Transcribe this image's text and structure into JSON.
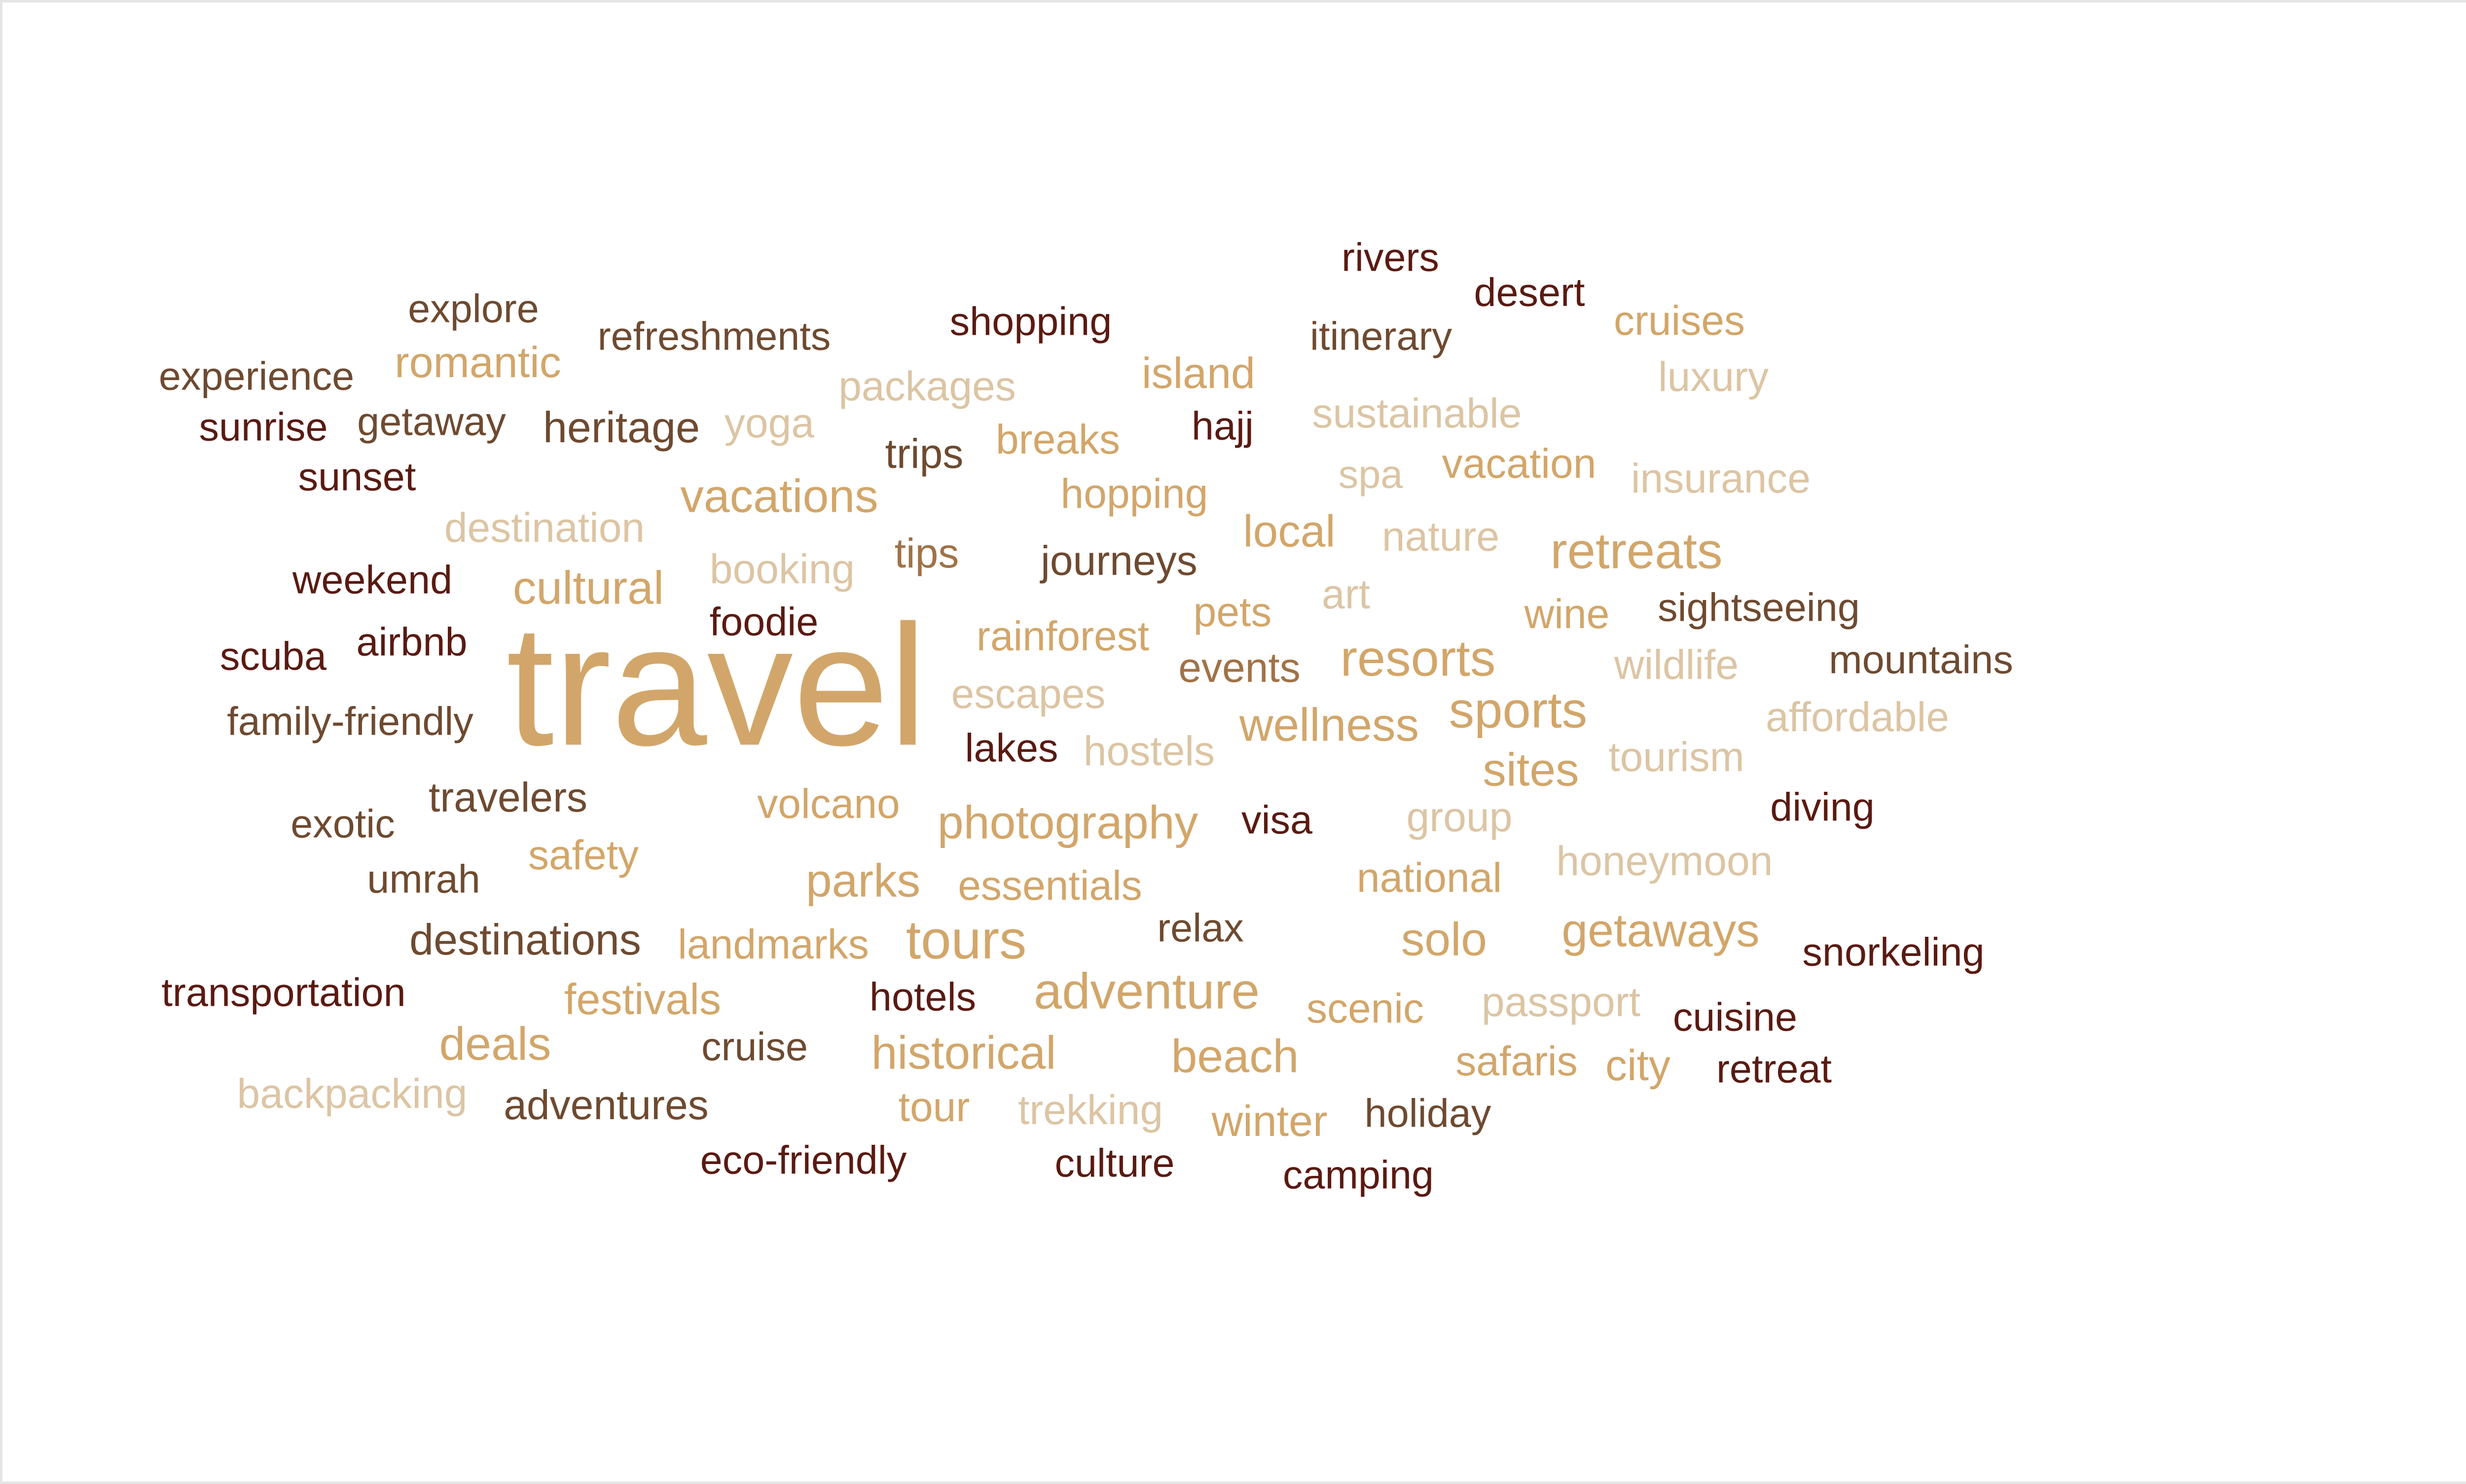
{
  "wordcloud": {
    "colors": {
      "deep_maroon": "#5a1a12",
      "dark_brown": "#6e4a30",
      "mid_brown": "#a17247",
      "gold": "#d2a66a",
      "tan": "#d8b88e",
      "light_tan": "#dcc5a4"
    },
    "words": [
      {
        "text": "travel",
        "color": "#d2a66a"
      },
      {
        "text": "rivers",
        "color": "#5a1a12"
      },
      {
        "text": "desert",
        "color": "#5a1a12"
      },
      {
        "text": "explore",
        "color": "#6e4a30"
      },
      {
        "text": "shopping",
        "color": "#5a1a12"
      },
      {
        "text": "cruises",
        "color": "#d2a66a"
      },
      {
        "text": "refreshments",
        "color": "#6e4a30"
      },
      {
        "text": "itinerary",
        "color": "#6e4a30"
      },
      {
        "text": "romantic",
        "color": "#d2a66a"
      },
      {
        "text": "experience",
        "color": "#6e4a30"
      },
      {
        "text": "packages",
        "color": "#dcc5a4"
      },
      {
        "text": "island",
        "color": "#d2a66a"
      },
      {
        "text": "luxury",
        "color": "#dcc5a4"
      },
      {
        "text": "sunrise",
        "color": "#5a1a12"
      },
      {
        "text": "getaway",
        "color": "#6e4a30"
      },
      {
        "text": "heritage",
        "color": "#6e4a30"
      },
      {
        "text": "yoga",
        "color": "#dcc5a4"
      },
      {
        "text": "hajj",
        "color": "#5a1a12"
      },
      {
        "text": "sustainable",
        "color": "#dcc5a4"
      },
      {
        "text": "trips",
        "color": "#6e4a30"
      },
      {
        "text": "breaks",
        "color": "#d2a66a"
      },
      {
        "text": "vacation",
        "color": "#d2a66a"
      },
      {
        "text": "sunset",
        "color": "#5a1a12"
      },
      {
        "text": "spa",
        "color": "#dcc5a4"
      },
      {
        "text": "insurance",
        "color": "#dcc5a4"
      },
      {
        "text": "vacations",
        "color": "#d2a66a"
      },
      {
        "text": "hopping",
        "color": "#d2a66a"
      },
      {
        "text": "destination",
        "color": "#dcc5a4"
      },
      {
        "text": "local",
        "color": "#d2a66a"
      },
      {
        "text": "nature",
        "color": "#dcc5a4"
      },
      {
        "text": "retreats",
        "color": "#d2a66a"
      },
      {
        "text": "tips",
        "color": "#a17247"
      },
      {
        "text": "booking",
        "color": "#dcc5a4"
      },
      {
        "text": "journeys",
        "color": "#6e4a30"
      },
      {
        "text": "weekend",
        "color": "#5a1a12"
      },
      {
        "text": "cultural",
        "color": "#d2a66a"
      },
      {
        "text": "pets",
        "color": "#d2a66a"
      },
      {
        "text": "art",
        "color": "#dcc5a4"
      },
      {
        "text": "wine",
        "color": "#d2a66a"
      },
      {
        "text": "sightseeing",
        "color": "#6e4a30"
      },
      {
        "text": "foodie",
        "color": "#5a1a12"
      },
      {
        "text": "airbnb",
        "color": "#5a1a12"
      },
      {
        "text": "rainforest",
        "color": "#d2a66a"
      },
      {
        "text": "resorts",
        "color": "#d2a66a"
      },
      {
        "text": "scuba",
        "color": "#5a1a12"
      },
      {
        "text": "events",
        "color": "#a17247"
      },
      {
        "text": "wildlife",
        "color": "#dcc5a4"
      },
      {
        "text": "mountains",
        "color": "#6e4a30"
      },
      {
        "text": "escapes",
        "color": "#dcc5a4"
      },
      {
        "text": "sports",
        "color": "#d2a66a"
      },
      {
        "text": "family-friendly",
        "color": "#6e4a30"
      },
      {
        "text": "wellness",
        "color": "#d2a66a"
      },
      {
        "text": "affordable",
        "color": "#dcc5a4"
      },
      {
        "text": "lakes",
        "color": "#5a1a12"
      },
      {
        "text": "hostels",
        "color": "#dcc5a4"
      },
      {
        "text": "tourism",
        "color": "#dcc5a4"
      },
      {
        "text": "sites",
        "color": "#d2a66a"
      },
      {
        "text": "travelers",
        "color": "#6e4a30"
      },
      {
        "text": "volcano",
        "color": "#d2a66a"
      },
      {
        "text": "diving",
        "color": "#5a1a12"
      },
      {
        "text": "exotic",
        "color": "#6e4a30"
      },
      {
        "text": "photography",
        "color": "#d2a66a"
      },
      {
        "text": "visa",
        "color": "#5a1a12"
      },
      {
        "text": "group",
        "color": "#dcc5a4"
      },
      {
        "text": "safety",
        "color": "#d2a66a"
      },
      {
        "text": "honeymoon",
        "color": "#dcc5a4"
      },
      {
        "text": "umrah",
        "color": "#6e4a30"
      },
      {
        "text": "parks",
        "color": "#d2a66a"
      },
      {
        "text": "essentials",
        "color": "#d2a66a"
      },
      {
        "text": "national",
        "color": "#d2a66a"
      },
      {
        "text": "relax",
        "color": "#6e4a30"
      },
      {
        "text": "getaways",
        "color": "#d2a66a"
      },
      {
        "text": "destinations",
        "color": "#6e4a30"
      },
      {
        "text": "landmarks",
        "color": "#d2a66a"
      },
      {
        "text": "tours",
        "color": "#d2a66a"
      },
      {
        "text": "solo",
        "color": "#d2a66a"
      },
      {
        "text": "snorkeling",
        "color": "#5a1a12"
      },
      {
        "text": "transportation",
        "color": "#5a1a12"
      },
      {
        "text": "festivals",
        "color": "#d2a66a"
      },
      {
        "text": "adventure",
        "color": "#d2a66a"
      },
      {
        "text": "hotels",
        "color": "#5a1a12"
      },
      {
        "text": "passport",
        "color": "#dcc5a4"
      },
      {
        "text": "scenic",
        "color": "#d2a66a"
      },
      {
        "text": "cuisine",
        "color": "#5a1a12"
      },
      {
        "text": "deals",
        "color": "#d2a66a"
      },
      {
        "text": "cruise",
        "color": "#6e4a30"
      },
      {
        "text": "historical",
        "color": "#d2a66a"
      },
      {
        "text": "beach",
        "color": "#d2a66a"
      },
      {
        "text": "safaris",
        "color": "#d2a66a"
      },
      {
        "text": "city",
        "color": "#d2a66a"
      },
      {
        "text": "retreat",
        "color": "#5a1a12"
      },
      {
        "text": "backpacking",
        "color": "#dcc5a4"
      },
      {
        "text": "adventures",
        "color": "#6e4a30"
      },
      {
        "text": "tour",
        "color": "#d2a66a"
      },
      {
        "text": "trekking",
        "color": "#dcc5a4"
      },
      {
        "text": "winter",
        "color": "#d2a66a"
      },
      {
        "text": "holiday",
        "color": "#6e4a30"
      },
      {
        "text": "eco-friendly",
        "color": "#5a1a12"
      },
      {
        "text": "culture",
        "color": "#5a1a12"
      },
      {
        "text": "camping",
        "color": "#5a1a12"
      }
    ]
  }
}
